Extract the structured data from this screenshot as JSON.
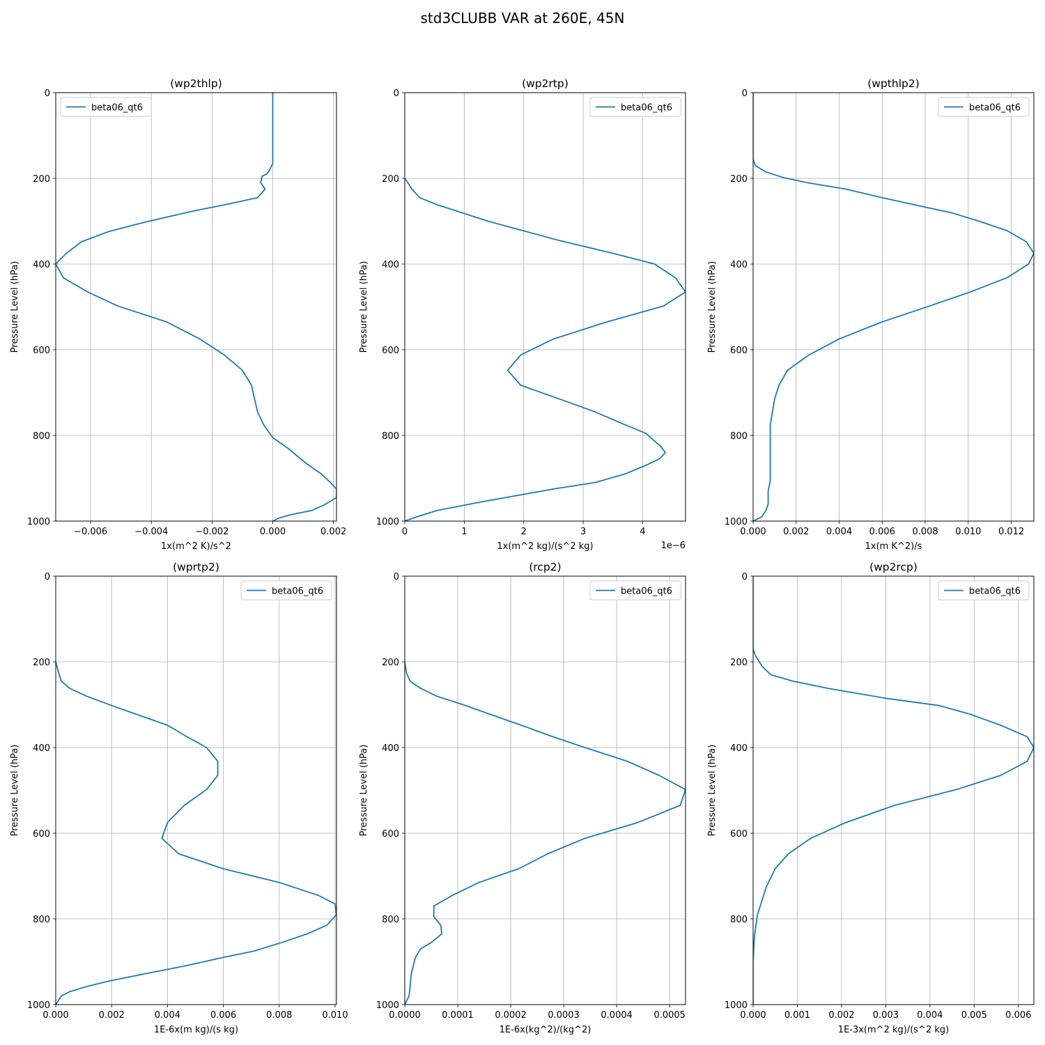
{
  "figure": {
    "title": "std3CLUBB VAR at 260E, 45N"
  },
  "style": {
    "line_color": "#1f77b4",
    "grid_color": "#b0b0b0"
  },
  "chart_data": [
    {
      "type": "line",
      "title": "(wp2thlp)",
      "xlabel": "1x(m^2 K)/s^2",
      "ylabel": "Pressure Level (hPa)",
      "xlim": [
        -0.00715,
        0.0021
      ],
      "ylim": [
        1000,
        0
      ],
      "xticks": [
        -0.006,
        -0.004,
        -0.002,
        0.0,
        0.002
      ],
      "xtick_labels": [
        "−0.006",
        "−0.004",
        "−0.002",
        "0.000",
        "0.002"
      ],
      "yticks": [
        0,
        200,
        400,
        600,
        800,
        1000
      ],
      "ytick_labels": [
        "0",
        "200",
        "400",
        "600",
        "800",
        "1000"
      ],
      "offset_label": "",
      "grid": true,
      "legend_loc": "upper left",
      "series": [
        {
          "name": "beta06_qt6",
          "x": [
            0.0,
            0.0,
            0.0,
            -0.0001,
            -0.0002,
            -0.00035,
            -0.0004,
            -0.00025,
            -0.0005,
            -0.0016,
            -0.0026,
            -0.0042,
            -0.0054,
            -0.0063,
            -0.0068,
            -0.00715,
            -0.0069,
            -0.0061,
            -0.0051,
            -0.0035,
            -0.0024,
            -0.0016,
            -0.001,
            -0.0007,
            -0.0006,
            -0.0005,
            -0.0003,
            0.0,
            0.0005,
            0.0011,
            0.0016,
            0.0019,
            0.0021,
            0.0021,
            0.0017,
            0.0013,
            0.0006,
            0.0002,
            0.0
          ],
          "y": [
            0,
            100,
            165,
            180,
            190,
            195,
            210,
            225,
            245,
            262,
            276,
            302,
            324,
            348,
            375,
            400,
            432,
            465,
            498,
            535,
            575,
            612,
            648,
            683,
            715,
            745,
            775,
            805,
            830,
            865,
            890,
            910,
            925,
            945,
            962,
            975,
            985,
            993,
            1000
          ]
        }
      ]
    },
    {
      "type": "line",
      "title": "(wp2rtp)",
      "xlabel": "1x(m^2 kg)/(s^2 kg)",
      "ylabel": "Pressure Level (hPa)",
      "xlim": [
        0,
        4.72
      ],
      "ylim": [
        1000,
        0
      ],
      "xticks": [
        0,
        1,
        2,
        3,
        4
      ],
      "xtick_labels": [
        "0",
        "1",
        "2",
        "3",
        "4"
      ],
      "yticks": [
        0,
        200,
        400,
        600,
        800,
        1000
      ],
      "ytick_labels": [
        "0",
        "200",
        "400",
        "600",
        "800",
        "1000"
      ],
      "offset_label": "1e−6",
      "grid": true,
      "legend_loc": "upper right",
      "series": [
        {
          "name": "beta06_qt6",
          "x": [
            0.0,
            0.05,
            0.12,
            0.25,
            0.55,
            1.4,
            2.6,
            3.5,
            4.2,
            4.55,
            4.72,
            4.35,
            3.4,
            2.5,
            1.95,
            1.73,
            1.95,
            2.6,
            3.2,
            3.7,
            4.05,
            4.3,
            4.38,
            4.28,
            4.05,
            3.7,
            3.2,
            2.5,
            1.3,
            0.55,
            0.2,
            0.0
          ],
          "y": [
            200,
            210,
            225,
            245,
            262,
            300,
            345,
            375,
            400,
            432,
            465,
            498,
            535,
            575,
            612,
            648,
            683,
            715,
            745,
            775,
            795,
            825,
            840,
            855,
            870,
            890,
            910,
            925,
            955,
            975,
            990,
            1000
          ]
        }
      ]
    },
    {
      "type": "line",
      "title": "(wpthlp2)",
      "xlabel": "1x(m K^2)/s",
      "ylabel": "Pressure Level (hPa)",
      "xlim": [
        0,
        0.01305
      ],
      "ylim": [
        1000,
        0
      ],
      "xticks": [
        0.0,
        0.002,
        0.004,
        0.006,
        0.008,
        0.01,
        0.012
      ],
      "xtick_labels": [
        "0.000",
        "0.002",
        "0.004",
        "0.006",
        "0.008",
        "0.010",
        "0.012"
      ],
      "yticks": [
        0,
        200,
        400,
        600,
        800,
        1000
      ],
      "ytick_labels": [
        "0",
        "200",
        "400",
        "600",
        "800",
        "1000"
      ],
      "offset_label": "",
      "grid": true,
      "legend_loc": "upper right",
      "series": [
        {
          "name": "beta06_qt6",
          "x": [
            0.0,
            0.0,
            0.0,
            0.0001,
            0.0006,
            0.0014,
            0.0025,
            0.0043,
            0.006,
            0.0078,
            0.0092,
            0.0105,
            0.0118,
            0.0127,
            0.01305,
            0.0128,
            0.0118,
            0.0101,
            0.0082,
            0.006,
            0.004,
            0.0026,
            0.0016,
            0.0012,
            0.001,
            0.0009,
            0.0008,
            0.0008,
            0.0008,
            0.0008,
            0.0008,
            0.0008,
            0.0007,
            0.0007,
            0.0006,
            0.0004,
            0.0
          ],
          "y": [
            0,
            100,
            155,
            170,
            185,
            198,
            210,
            225,
            245,
            265,
            280,
            300,
            322,
            348,
            375,
            400,
            432,
            465,
            498,
            535,
            575,
            612,
            648,
            683,
            715,
            745,
            775,
            800,
            820,
            845,
            875,
            905,
            930,
            960,
            975,
            990,
            1000
          ]
        }
      ]
    },
    {
      "type": "line",
      "title": "(wprtp2)",
      "xlabel": "1E-6x(m kg)/(s kg)",
      "ylabel": "Pressure Level (hPa)",
      "xlim": [
        0,
        0.01005
      ],
      "ylim": [
        1000,
        0
      ],
      "xticks": [
        0.0,
        0.002,
        0.004,
        0.006,
        0.008,
        0.01
      ],
      "xtick_labels": [
        "0.000",
        "0.002",
        "0.004",
        "0.006",
        "0.008",
        "0.010"
      ],
      "yticks": [
        0,
        200,
        400,
        600,
        800,
        1000
      ],
      "ytick_labels": [
        "0",
        "200",
        "400",
        "600",
        "800",
        "1000"
      ],
      "offset_label": "",
      "grid": true,
      "legend_loc": "upper right",
      "series": [
        {
          "name": "beta06_qt6",
          "x": [
            0.0,
            0.0001,
            0.0002,
            0.0005,
            0.0011,
            0.002,
            0.003,
            0.004,
            0.0047,
            0.0054,
            0.0058,
            0.0058,
            0.0054,
            0.0046,
            0.004,
            0.0038,
            0.0044,
            0.006,
            0.008,
            0.0094,
            0.01,
            0.01005,
            0.0097,
            0.009,
            0.0081,
            0.0071,
            0.006,
            0.0046,
            0.0032,
            0.0019,
            0.0011,
            0.0005,
            0.0002,
            0.0001,
            0.0
          ],
          "y": [
            200,
            225,
            245,
            262,
            280,
            302,
            325,
            348,
            375,
            400,
            432,
            465,
            498,
            535,
            575,
            612,
            648,
            683,
            715,
            745,
            765,
            790,
            815,
            835,
            855,
            875,
            890,
            910,
            928,
            945,
            958,
            970,
            980,
            990,
            1000
          ]
        }
      ]
    },
    {
      "type": "line",
      "title": "(rcp2)",
      "xlabel": "1E-6x(kg^2)/(kg^2)",
      "ylabel": "Pressure Level (hPa)",
      "xlim": [
        0,
        0.00053
      ],
      "ylim": [
        1000,
        0
      ],
      "xticks": [
        0.0,
        0.0001,
        0.0002,
        0.0003,
        0.0004,
        0.0005
      ],
      "xtick_labels": [
        "0.0000",
        "0.0001",
        "0.0002",
        "0.0003",
        "0.0004",
        "0.0005"
      ],
      "yticks": [
        0,
        200,
        400,
        600,
        800,
        1000
      ],
      "ytick_labels": [
        "0",
        "200",
        "400",
        "600",
        "800",
        "1000"
      ],
      "offset_label": "",
      "grid": true,
      "legend_loc": "upper right",
      "series": [
        {
          "name": "beta06_qt6",
          "x": [
            0.0,
            3e-06,
            1e-05,
            3e-05,
            6e-05,
            0.00011,
            0.00016,
            0.00022,
            0.00028,
            0.00034,
            0.00042,
            0.00048,
            0.00053,
            0.00052,
            0.00044,
            0.00034,
            0.00027,
            0.000215,
            0.00014,
            9e-05,
            5.5e-05,
            5.5e-05,
            6.8e-05,
            7e-05,
            5e-05,
            3e-05,
            2e-05,
            1.2e-05,
            1e-05,
            8e-06,
            0.0
          ],
          "y": [
            200,
            225,
            245,
            262,
            280,
            300,
            322,
            348,
            375,
            400,
            432,
            465,
            498,
            535,
            575,
            612,
            648,
            683,
            715,
            745,
            770,
            795,
            815,
            835,
            855,
            870,
            890,
            930,
            960,
            980,
            1000
          ]
        }
      ]
    },
    {
      "type": "line",
      "title": "(wp2rcp)",
      "xlabel": "1E-3x(m^2 kg)/(s^2 kg)",
      "ylabel": "Pressure Level (hPa)",
      "xlim": [
        0,
        0.00635
      ],
      "ylim": [
        1000,
        0
      ],
      "xticks": [
        0.0,
        0.001,
        0.002,
        0.003,
        0.004,
        0.005,
        0.006
      ],
      "xtick_labels": [
        "0.000",
        "0.001",
        "0.002",
        "0.003",
        "0.004",
        "0.005",
        "0.006"
      ],
      "yticks": [
        0,
        200,
        400,
        600,
        800,
        1000
      ],
      "ytick_labels": [
        "0",
        "200",
        "400",
        "600",
        "800",
        "1000"
      ],
      "offset_label": "",
      "grid": true,
      "legend_loc": "upper right",
      "series": [
        {
          "name": "beta06_qt6",
          "x": [
            0.0,
            0.0,
            0.0,
            5e-05,
            0.0002,
            0.0004,
            0.0009,
            0.0017,
            0.003,
            0.0042,
            0.0049,
            0.0056,
            0.0062,
            0.00635,
            0.0062,
            0.0056,
            0.0046,
            0.0032,
            0.0021,
            0.0013,
            0.0008,
            0.0005,
            0.0003,
            0.0001,
            3e-05,
            0.0,
            0.0
          ],
          "y": [
            0,
            100,
            170,
            185,
            210,
            230,
            245,
            262,
            285,
            302,
            322,
            348,
            375,
            400,
            432,
            465,
            498,
            535,
            575,
            612,
            648,
            683,
            725,
            790,
            840,
            900,
            1000
          ]
        }
      ]
    }
  ]
}
